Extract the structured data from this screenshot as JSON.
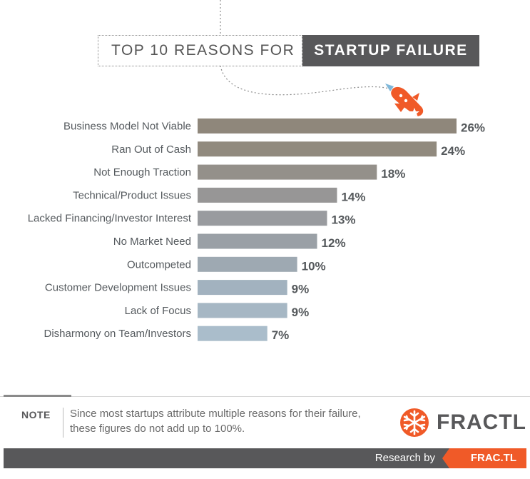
{
  "title": {
    "light": "TOP 10 REASONS FOR",
    "bold": "STARTUP FAILURE"
  },
  "chart_data": {
    "type": "bar",
    "orientation": "horizontal",
    "categories": [
      "Business Model Not Viable",
      "Ran Out of Cash",
      "Not Enough Traction",
      "Technical/Product Issues",
      "Lacked Financing/Investor Interest",
      "No Market Need",
      "Outcompeted",
      "Customer Development Issues",
      "Lack of Focus",
      "Disharmony on Team/Investors"
    ],
    "values": [
      26,
      24,
      18,
      14,
      13,
      12,
      10,
      9,
      9,
      7
    ],
    "value_labels": [
      "26%",
      "24%",
      "18%",
      "14%",
      "13%",
      "12%",
      "10%",
      "9%",
      "9%",
      "7%"
    ],
    "bar_colors": [
      "#8f877b",
      "#918a7e",
      "#94908a",
      "#979696",
      "#999b9f",
      "#9aa0a6",
      "#9ea9b2",
      "#a2b2bf",
      "#a6b7c4",
      "#aabdcb"
    ],
    "xlim": [
      0,
      26
    ],
    "grid": false,
    "legend": "none"
  },
  "note": {
    "label": "NOTE",
    "text": "Since most startups attribute multiple reasons for their failure, these figures do not add up to 100%."
  },
  "brand": {
    "name": "FRACTL",
    "logo_icon": "snowflake-gear-icon",
    "color": "#f05a28"
  },
  "footer": {
    "research_by": "Research by",
    "site": "FRAC.TL"
  }
}
